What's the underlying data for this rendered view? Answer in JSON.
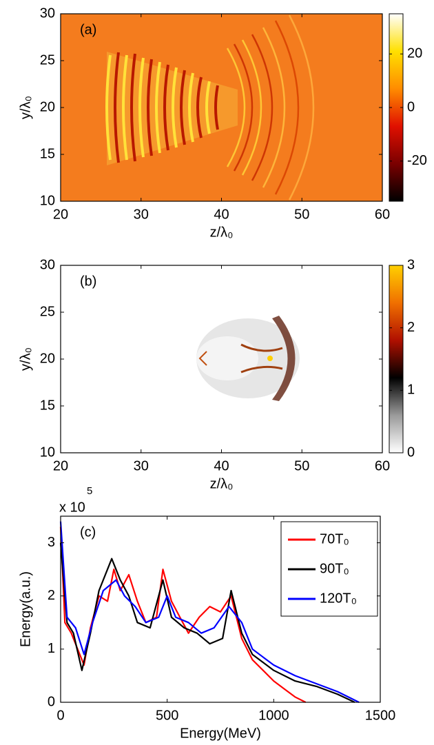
{
  "chart_data": [
    {
      "type": "image",
      "panel_label": "(a)",
      "x_label": "z/λ₀",
      "y_label": "y/λ₀",
      "xlim": [
        20,
        60
      ],
      "xticks": [
        20,
        30,
        40,
        50,
        60
      ],
      "ylim": [
        10,
        30
      ],
      "yticks": [
        10,
        15,
        20,
        25,
        30
      ],
      "colorbar": {
        "lim": [
          -35,
          35
        ],
        "ticks": [
          -20,
          0,
          20
        ],
        "colors": [
          "#000000",
          "#7a0000",
          "#e01000",
          "#ff8c00",
          "#ffe000",
          "#ffffff"
        ]
      }
    },
    {
      "type": "image",
      "panel_label": "(b)",
      "x_label": "z/λ₀",
      "y_label": "y/λ₀",
      "xlim": [
        20,
        60
      ],
      "xticks": [
        20,
        30,
        40,
        50,
        60
      ],
      "ylim": [
        10,
        30
      ],
      "yticks": [
        10,
        15,
        20,
        25,
        30
      ],
      "colorbar": {
        "lim": [
          0,
          3
        ],
        "ticks": [
          0,
          1,
          2,
          3
        ],
        "colors": [
          "#ffffff",
          "#9a9a9a",
          "#000000",
          "#b01000",
          "#f07000",
          "#ffd000"
        ]
      }
    },
    {
      "type": "line",
      "panel_label": "(c)",
      "x_label": "Energy(MeV)",
      "y_label": "Energy(a.u.)",
      "y_multiplier": {
        "base": "x 10",
        "exponent": "5"
      },
      "xlim": [
        0,
        1500
      ],
      "xticks": [
        0,
        500,
        1000,
        1500
      ],
      "ylim": [
        0,
        3.5
      ],
      "yticks": [
        0,
        1,
        2,
        3
      ],
      "series": [
        {
          "name": "70T₀",
          "color": "#ff0000",
          "x": [
            0,
            20,
            50,
            80,
            110,
            140,
            180,
            220,
            250,
            280,
            320,
            360,
            400,
            450,
            480,
            520,
            560,
            600,
            650,
            700,
            750,
            800,
            850,
            900,
            950,
            1000,
            1050,
            1100,
            1150
          ],
          "values": [
            3.3,
            1.5,
            1.3,
            1.0,
            0.7,
            1.4,
            2.0,
            1.9,
            2.5,
            2.1,
            2.4,
            1.9,
            1.5,
            1.6,
            2.5,
            1.9,
            1.6,
            1.3,
            1.6,
            1.8,
            1.7,
            2.0,
            1.2,
            0.8,
            0.6,
            0.4,
            0.25,
            0.1,
            0
          ]
        },
        {
          "name": "90T₀",
          "color": "#000000",
          "x": [
            0,
            30,
            60,
            100,
            140,
            180,
            240,
            280,
            320,
            360,
            420,
            480,
            520,
            580,
            640,
            700,
            760,
            800,
            850,
            900,
            1000,
            1100,
            1200,
            1300,
            1380
          ],
          "values": [
            3.0,
            1.5,
            1.3,
            0.6,
            1.3,
            2.1,
            2.7,
            2.3,
            2.0,
            1.5,
            1.4,
            2.3,
            1.6,
            1.4,
            1.3,
            1.1,
            1.2,
            2.1,
            1.3,
            0.9,
            0.6,
            0.4,
            0.3,
            0.15,
            0
          ]
        },
        {
          "name": "120T₀",
          "color": "#0000ff",
          "x": [
            0,
            30,
            70,
            110,
            150,
            200,
            260,
            300,
            350,
            400,
            460,
            500,
            540,
            600,
            660,
            720,
            790,
            850,
            900,
            1000,
            1100,
            1200,
            1300,
            1400
          ],
          "values": [
            3.4,
            1.6,
            1.4,
            0.9,
            1.5,
            2.1,
            2.3,
            2.0,
            1.8,
            1.5,
            1.6,
            2.0,
            1.6,
            1.5,
            1.3,
            1.4,
            1.8,
            1.5,
            1.0,
            0.7,
            0.5,
            0.35,
            0.2,
            0
          ]
        }
      ],
      "legend": "top-right"
    }
  ]
}
